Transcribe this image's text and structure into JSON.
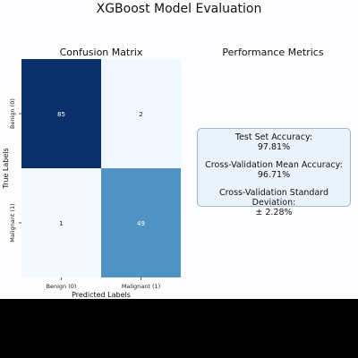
{
  "figure": {
    "title": "XGBoost Model Evaluation"
  },
  "performance": {
    "title": "Performance Metrics",
    "metrics": [
      {
        "label": "Test Set Accuracy:",
        "value": "97.81%"
      },
      {
        "label": "Cross-Validation Mean Accuracy:",
        "value": "96.71%"
      },
      {
        "label": "Cross-Validation Standard Deviation:",
        "value": "± 2.28%"
      }
    ]
  },
  "chart_data": {
    "type": "heatmap",
    "title": "Confusion Matrix",
    "xlabel": "Predicted Labels",
    "ylabel": "True Labels",
    "x_categories": [
      "Benign (0)",
      "Malignant (1)"
    ],
    "y_categories": [
      "Benign (0)",
      "Malignant (1)"
    ],
    "matrix": [
      [
        85,
        2
      ],
      [
        1,
        49
      ]
    ],
    "colormap": "Blues",
    "colors": {
      "max": "#0b2f6b",
      "mid": "#5ba3cf",
      "min": "#f5f9ff"
    }
  }
}
